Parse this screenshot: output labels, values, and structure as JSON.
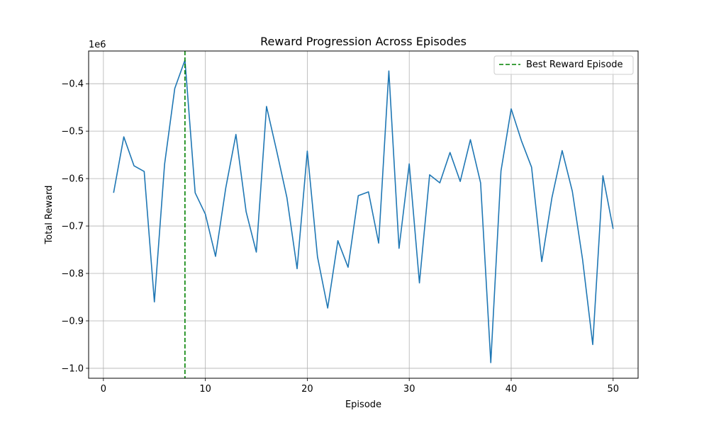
{
  "chart_data": {
    "type": "line",
    "title": "Reward Progression Across Episodes",
    "xlabel": "Episode",
    "ylabel": "Total Reward",
    "offset_text": "1e6",
    "xlim": [
      -1.45,
      52.45
    ],
    "ylim": [
      -1.021,
      -0.331
    ],
    "xticks": [
      0,
      10,
      20,
      30,
      40,
      50
    ],
    "xtick_labels": [
      "0",
      "10",
      "20",
      "30",
      "40",
      "50"
    ],
    "yticks": [
      -0.4,
      -0.5,
      -0.6,
      -0.7,
      -0.8,
      -0.9,
      -1.0
    ],
    "ytick_labels": [
      "−0.4",
      "−0.5",
      "−0.6",
      "−0.7",
      "−0.8",
      "−0.9",
      "−1.0"
    ],
    "grid": true,
    "series": [
      {
        "color": "#1f77b4",
        "x": [
          1,
          2,
          3,
          4,
          5,
          6,
          7,
          8,
          9,
          10,
          11,
          12,
          13,
          14,
          15,
          16,
          17,
          18,
          19,
          20,
          21,
          22,
          23,
          24,
          25,
          26,
          27,
          28,
          29,
          30,
          31,
          32,
          33,
          34,
          35,
          36,
          37,
          38,
          39,
          40,
          41,
          42,
          43,
          44,
          45,
          46,
          47,
          48,
          49,
          50
        ],
        "y": [
          -0.63,
          -0.512,
          -0.573,
          -0.585,
          -0.86,
          -0.57,
          -0.41,
          -0.35,
          -0.63,
          -0.675,
          -0.764,
          -0.62,
          -0.507,
          -0.67,
          -0.755,
          -0.448,
          -0.542,
          -0.64,
          -0.79,
          -0.542,
          -0.765,
          -0.873,
          -0.731,
          -0.787,
          -0.636,
          -0.628,
          -0.736,
          -0.373,
          -0.747,
          -0.569,
          -0.82,
          -0.592,
          -0.609,
          -0.545,
          -0.606,
          -0.518,
          -0.609,
          -0.988,
          -0.584,
          -0.453,
          -0.52,
          -0.576,
          -0.775,
          -0.64,
          -0.541,
          -0.627,
          -0.77,
          -0.95,
          -0.594,
          -0.706
        ]
      }
    ],
    "vline": {
      "x": 8,
      "color": "#008000",
      "label": "Best Reward Episode"
    },
    "legend": {
      "placement": "top-right",
      "entries": [
        "Best Reward Episode"
      ]
    }
  }
}
